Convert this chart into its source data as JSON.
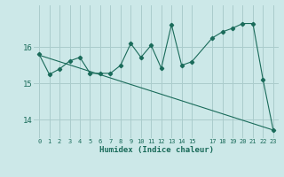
{
  "title": "",
  "xlabel": "Humidex (Indice chaleur)",
  "ylabel": "",
  "background_color": "#cce8e8",
  "grid_color": "#aacccc",
  "line_color": "#1a6b5a",
  "xlim": [
    -0.5,
    23.5
  ],
  "ylim": [
    13.5,
    17.15
  ],
  "yticks": [
    14,
    15,
    16
  ],
  "ytick_labels": [
    "14",
    "15",
    "16"
  ],
  "xticks": [
    0,
    1,
    2,
    3,
    4,
    5,
    6,
    7,
    8,
    9,
    10,
    11,
    12,
    13,
    14,
    15,
    17,
    18,
    19,
    20,
    21,
    22,
    23
  ],
  "xtick_labels": [
    "0",
    "1",
    "2",
    "3",
    "4",
    "5",
    "6",
    "7",
    "8",
    "9",
    "10",
    "11",
    "12",
    "13",
    "14",
    "15",
    "17",
    "18",
    "19",
    "20",
    "21",
    "22",
    "23"
  ],
  "series1_x": [
    0,
    1,
    2,
    3,
    4,
    5,
    6,
    7,
    8,
    9,
    10,
    11,
    12,
    13,
    14,
    15,
    17,
    18,
    19,
    20,
    21,
    22,
    23
  ],
  "series1_y": [
    15.8,
    15.25,
    15.4,
    15.62,
    15.72,
    15.28,
    15.28,
    15.28,
    15.5,
    16.1,
    15.72,
    16.05,
    15.42,
    16.62,
    15.5,
    15.6,
    16.25,
    16.42,
    16.52,
    16.65,
    16.65,
    15.1,
    13.72
  ],
  "series2_x": [
    0,
    23
  ],
  "series2_y": [
    15.78,
    13.72
  ]
}
